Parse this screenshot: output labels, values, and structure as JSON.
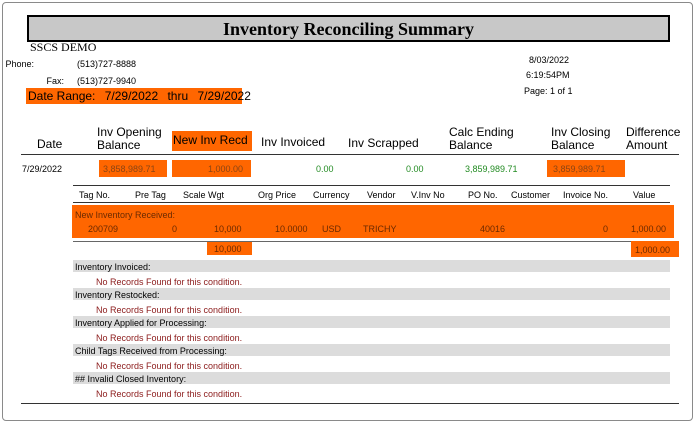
{
  "report": {
    "title": "Inventory Reconciling Summary",
    "company": "SSCS DEMO",
    "phone_label": "Phone:",
    "phone": "(513)727-8888",
    "fax_label": "Fax:",
    "fax": "(513)727-9940",
    "date_range_label": "Date Range:",
    "date_from": "7/29/2022",
    "thru_label": "thru",
    "date_to": "7/29/2022",
    "print_date": "8/03/2022",
    "print_time": "6:19:54PM",
    "page": "Page: 1 of 1"
  },
  "columns": {
    "date": "Date",
    "opening_1": "Inv Opening",
    "opening_2": "Balance",
    "new_recd": "New Inv Recd",
    "invoiced": "Inv Invoiced",
    "scrapped": "Inv Scrapped",
    "calc_1": "Calc Ending",
    "calc_2": "Balance",
    "closing_1": "Inv Closing",
    "closing_2": "Balance",
    "diff_1": "Difference",
    "diff_2": "Amount"
  },
  "summary_row": {
    "date": "7/29/2022",
    "opening": "3,858,989.71",
    "new_recd": "1,000.00",
    "invoiced": "0.00",
    "scrapped": "0.00",
    "calc_ending": "3,859,989.71",
    "closing": "3,859,989.71"
  },
  "detail_headers": {
    "tag_no": "Tag No.",
    "pre_tag": "Pre Tag",
    "scale_wgt": "Scale Wgt",
    "org_price": "Org Price",
    "currency": "Currency",
    "vendor": "Vendor",
    "v_inv_no": "V.Inv No",
    "po_no": "PO No.",
    "customer": "Customer",
    "invoice_no": "Invoice No.",
    "value": "Value"
  },
  "received": {
    "label": "New Inventory Received:",
    "row": {
      "tag_no": "200709",
      "pre_tag": "0",
      "scale_wgt": "10,000",
      "org_price": "10.0000",
      "currency": "USD",
      "vendor": "TRICHY",
      "po_no": "40016",
      "invoice_no": "0",
      "value": "1,000.00"
    },
    "total_wgt": "10,000",
    "total_value": "1,000.00"
  },
  "sections": [
    {
      "label": "Inventory Invoiced:",
      "message": "No Records Found for this condition."
    },
    {
      "label": "Inventory Restocked:",
      "message": "No Records Found for this condition."
    },
    {
      "label": "Inventory Applied for Processing:",
      "message": "No Records Found for this condition."
    },
    {
      "label": "Child Tags Received from Processing:",
      "message": "No Records Found for this condition."
    },
    {
      "label": "## Invalid Closed Inventory:",
      "message": "No Records Found for this condition."
    }
  ],
  "colors": {
    "highlight": "#ff6600",
    "band_grey": "#dcdcdc",
    "value_green": "#228b22",
    "message_red": "#8b1a1a"
  }
}
